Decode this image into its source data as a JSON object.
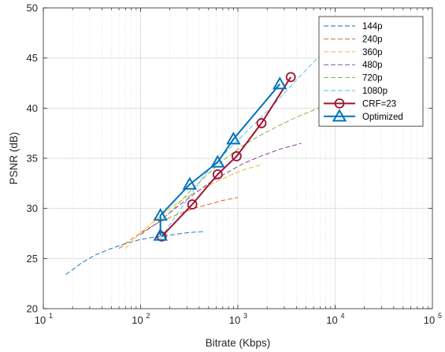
{
  "chart_data": {
    "type": "line",
    "xlabel": "Bitrate (Kbps)",
    "ylabel": "PSNR (dB)",
    "xscale": "log",
    "xlim": [
      10,
      100000
    ],
    "ylim": [
      20,
      50
    ],
    "x_tick_labels": [
      {
        "base": "10",
        "exp": "1"
      },
      {
        "base": "10",
        "exp": "2"
      },
      {
        "base": "10",
        "exp": "3"
      },
      {
        "base": "10",
        "exp": "4"
      },
      {
        "base": "10",
        "exp": "5"
      }
    ],
    "y_ticks": [
      20,
      25,
      30,
      35,
      40,
      45,
      50
    ],
    "grid": true,
    "legend_position": "top-right",
    "series": [
      {
        "name": "144p",
        "style": "dashed",
        "color": "#0072BD",
        "x": [
          17,
          25,
          35,
          50,
          70,
          100,
          150,
          220,
          320,
          450
        ],
        "y": [
          23.4,
          24.6,
          25.4,
          26.0,
          26.5,
          26.9,
          27.2,
          27.4,
          27.6,
          27.7
        ]
      },
      {
        "name": "240p",
        "style": "dashed",
        "color": "#D95319",
        "x": [
          60,
          80,
          110,
          160,
          240,
          350,
          500,
          700,
          1000
        ],
        "y": [
          26.0,
          26.9,
          27.8,
          28.7,
          29.4,
          30.0,
          30.4,
          30.8,
          31.1
        ]
      },
      {
        "name": "360p",
        "style": "dashed",
        "color": "#EDB120",
        "x": [
          70,
          100,
          150,
          220,
          330,
          500,
          750,
          1100,
          1800
        ],
        "y": [
          26.0,
          27.6,
          29.0,
          30.3,
          31.4,
          32.3,
          33.1,
          33.8,
          34.4
        ]
      },
      {
        "name": "480p",
        "style": "dashed",
        "color": "#7E2F8E",
        "x": [
          100,
          150,
          220,
          330,
          500,
          750,
          1100,
          1700,
          2700,
          4500
        ],
        "y": [
          27.4,
          28.6,
          29.9,
          31.2,
          32.5,
          33.5,
          34.4,
          35.2,
          35.9,
          36.5
        ]
      },
      {
        "name": "720p",
        "style": "dashed",
        "color": "#77AC30",
        "x": [
          150,
          220,
          330,
          500,
          750,
          1100,
          1700,
          2700,
          4000,
          6000,
          9000
        ],
        "y": [
          28.5,
          30.0,
          31.8,
          33.5,
          35.0,
          36.2,
          37.3,
          38.3,
          39.1,
          39.8,
          40.4
        ]
      },
      {
        "name": "1080p",
        "style": "dashed",
        "color": "#4DBEEE",
        "x": [
          160,
          240,
          350,
          500,
          750,
          1100,
          1700,
          2700,
          4000,
          6000,
          8000
        ],
        "y": [
          27.0,
          29.5,
          31.8,
          33.8,
          35.6,
          37.2,
          39.0,
          41.0,
          42.8,
          44.6,
          45.8
        ]
      },
      {
        "name": "CRF=23",
        "style": "solid",
        "marker": "circle",
        "color": "#A2142F",
        "x": [
          165,
          340,
          620,
          970,
          1750,
          3500
        ],
        "y": [
          27.2,
          30.4,
          33.4,
          35.2,
          38.5,
          43.1
        ]
      },
      {
        "name": "Optimized",
        "style": "solid",
        "marker": "triangle",
        "color": "#0072BD",
        "x": [
          160,
          160,
          320,
          620,
          900,
          2700
        ],
        "y": [
          27.3,
          29.3,
          32.4,
          34.6,
          36.9,
          42.4
        ]
      }
    ]
  }
}
